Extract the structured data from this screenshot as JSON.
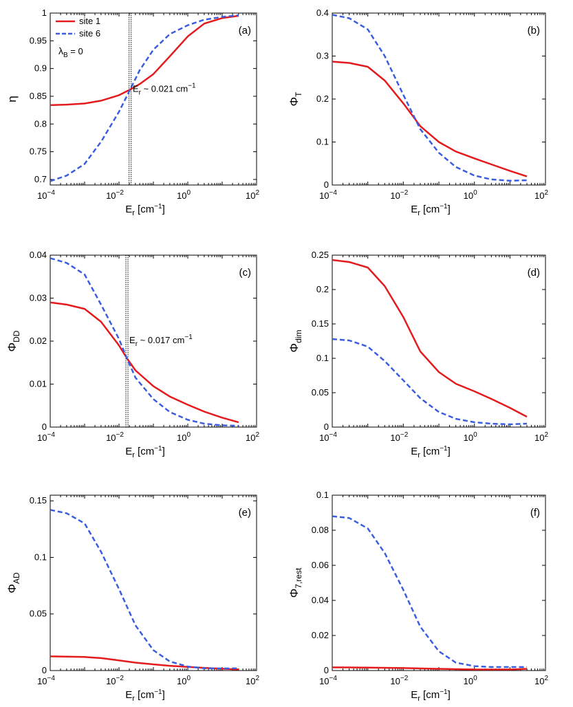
{
  "colors": {
    "site1": "#e41a1c",
    "site6": "#3a5de0",
    "axis": "#000000"
  },
  "legend": {
    "placement": "top-left",
    "entries": [
      "site 1",
      "site 6"
    ],
    "extra_label": "λ",
    "extra_sub": "B",
    "extra_tail": " = 0"
  },
  "chart_data": [
    {
      "type": "line",
      "panel_label": "(a)",
      "ylabel": "η",
      "ylabel_sub": "",
      "xlabel": "E",
      "xlabel_sub": "r",
      "xlabel_unit": " [cm",
      "xlabel_exp": "−1",
      "xlabel_close": "]",
      "xscale": "log",
      "xlim": [
        0.0001,
        100
      ],
      "ylim": [
        0.69,
        1.0
      ],
      "yticks": [
        0.7,
        0.75,
        0.8,
        0.85,
        0.9,
        0.95,
        1
      ],
      "yticklabels": [
        "0.7",
        "0.75",
        "0.8",
        "0.85",
        "0.9",
        "0.95",
        "1"
      ],
      "xticks": [
        0.0001,
        0.01,
        1,
        100
      ],
      "xtick_base": "10",
      "xtick_exps": [
        "−4",
        "−2",
        "0",
        "2"
      ],
      "vline": 0.021,
      "annotation": {
        "prefix": "E",
        "sub": "r",
        "text": " ~ 0.021 cm",
        "exp": "−1",
        "x": 0.025,
        "y": 0.858
      },
      "series": [
        {
          "name": "site 1",
          "x": [
            0.0001,
            0.0003,
            0.001,
            0.003,
            0.01,
            0.021,
            0.04,
            0.1,
            0.3,
            1,
            3,
            10,
            30
          ],
          "y": [
            0.834,
            0.835,
            0.837,
            0.842,
            0.852,
            0.862,
            0.872,
            0.89,
            0.922,
            0.958,
            0.981,
            0.991,
            0.995
          ]
        },
        {
          "name": "site 6",
          "x": [
            0.0001,
            0.0003,
            0.001,
            0.003,
            0.01,
            0.021,
            0.04,
            0.1,
            0.3,
            1,
            3,
            10,
            30
          ],
          "y": [
            0.697,
            0.707,
            0.728,
            0.768,
            0.822,
            0.862,
            0.897,
            0.934,
            0.962,
            0.978,
            0.988,
            0.993,
            0.996
          ]
        }
      ]
    },
    {
      "type": "line",
      "panel_label": "(b)",
      "ylabel": "Φ",
      "ylabel_sub": "T",
      "xlabel": "E",
      "xlabel_sub": "r",
      "xlabel_unit": " [cm",
      "xlabel_exp": "−1",
      "xlabel_close": "]",
      "xscale": "log",
      "xlim": [
        0.0001,
        100
      ],
      "ylim": [
        0,
        0.4
      ],
      "yticks": [
        0,
        0.1,
        0.2,
        0.3,
        0.4
      ],
      "yticklabels": [
        "0",
        "0.1",
        "0.2",
        "0.3",
        "0.4"
      ],
      "xticks": [
        0.0001,
        0.01,
        1,
        100
      ],
      "xtick_base": "10",
      "xtick_exps": [
        "−4",
        "−2",
        "0",
        "2"
      ],
      "series": [
        {
          "name": "site 1",
          "x": [
            0.0001,
            0.0003,
            0.001,
            0.003,
            0.01,
            0.03,
            0.1,
            0.3,
            1,
            3,
            10,
            30
          ],
          "y": [
            0.287,
            0.284,
            0.275,
            0.243,
            0.19,
            0.137,
            0.1,
            0.078,
            0.062,
            0.048,
            0.033,
            0.02
          ]
        },
        {
          "name": "site 6",
          "x": [
            0.0001,
            0.0003,
            0.001,
            0.003,
            0.01,
            0.03,
            0.1,
            0.3,
            1,
            3,
            10,
            30
          ],
          "y": [
            0.396,
            0.388,
            0.362,
            0.3,
            0.21,
            0.13,
            0.075,
            0.042,
            0.022,
            0.013,
            0.01,
            0.011
          ]
        }
      ]
    },
    {
      "type": "line",
      "panel_label": "(c)",
      "ylabel": "Φ",
      "ylabel_sub": "DD",
      "xlabel": "E",
      "xlabel_sub": "r",
      "xlabel_unit": " [cm",
      "xlabel_exp": "−1",
      "xlabel_close": "]",
      "xscale": "log",
      "xlim": [
        0.0001,
        100
      ],
      "ylim": [
        0,
        0.04
      ],
      "yticks": [
        0,
        0.01,
        0.02,
        0.03,
        0.04
      ],
      "yticklabels": [
        "0",
        "0.01",
        "0.02",
        "0.03",
        "0.04"
      ],
      "xticks": [
        0.0001,
        0.01,
        1,
        100
      ],
      "xtick_base": "10",
      "xtick_exps": [
        "−4",
        "−2",
        "0",
        "2"
      ],
      "vline": 0.017,
      "annotation": {
        "prefix": "E",
        "sub": "r",
        "text": " ~ 0.017 cm",
        "exp": "−1",
        "x": 0.02,
        "y": 0.0195
      },
      "series": [
        {
          "name": "site 1",
          "x": [
            0.0001,
            0.0003,
            0.001,
            0.003,
            0.01,
            0.017,
            0.03,
            0.1,
            0.3,
            1,
            3,
            10,
            30
          ],
          "y": [
            0.029,
            0.0285,
            0.0275,
            0.0245,
            0.019,
            0.016,
            0.0132,
            0.0095,
            0.0071,
            0.0052,
            0.0036,
            0.0022,
            0.0011
          ]
        },
        {
          "name": "site 6",
          "x": [
            0.0001,
            0.0003,
            0.001,
            0.003,
            0.01,
            0.017,
            0.03,
            0.1,
            0.3,
            1,
            3,
            10,
            30
          ],
          "y": [
            0.0393,
            0.0382,
            0.0355,
            0.0285,
            0.0205,
            0.016,
            0.0115,
            0.0065,
            0.0035,
            0.0017,
            0.0008,
            0.0004,
            0.0003
          ]
        }
      ]
    },
    {
      "type": "line",
      "panel_label": "(d)",
      "ylabel": "Φ",
      "ylabel_sub": "dim",
      "xlabel": "E",
      "xlabel_sub": "r",
      "xlabel_unit": " [cm",
      "xlabel_exp": "−1",
      "xlabel_close": "]",
      "xscale": "log",
      "xlim": [
        0.0001,
        100
      ],
      "ylim": [
        0,
        0.25
      ],
      "yticks": [
        0,
        0.05,
        0.1,
        0.15,
        0.2,
        0.25
      ],
      "yticklabels": [
        "0",
        "0.05",
        "0.1",
        "0.15",
        "0.2",
        "0.25"
      ],
      "xticks": [
        0.0001,
        0.01,
        1,
        100
      ],
      "xtick_base": "10",
      "xtick_exps": [
        "−4",
        "−2",
        "0",
        "2"
      ],
      "series": [
        {
          "name": "site 1",
          "x": [
            0.0001,
            0.0003,
            0.001,
            0.003,
            0.01,
            0.03,
            0.1,
            0.3,
            1,
            3,
            10,
            30
          ],
          "y": [
            0.243,
            0.24,
            0.232,
            0.205,
            0.16,
            0.11,
            0.08,
            0.063,
            0.052,
            0.041,
            0.028,
            0.015
          ]
        },
        {
          "name": "site 6",
          "x": [
            0.0001,
            0.0003,
            0.001,
            0.003,
            0.01,
            0.03,
            0.1,
            0.3,
            1,
            3,
            10,
            30
          ],
          "y": [
            0.128,
            0.126,
            0.117,
            0.096,
            0.068,
            0.042,
            0.022,
            0.012,
            0.007,
            0.005,
            0.004,
            0.005
          ]
        }
      ]
    },
    {
      "type": "line",
      "panel_label": "(e)",
      "ylabel": "Φ",
      "ylabel_sub": "AD",
      "xlabel": "E",
      "xlabel_sub": "r",
      "xlabel_unit": " [cm",
      "xlabel_exp": "−1",
      "xlabel_close": "]",
      "xscale": "log",
      "xlim": [
        0.0001,
        100
      ],
      "ylim": [
        0,
        0.155
      ],
      "yticks": [
        0,
        0.05,
        0.1,
        0.15
      ],
      "yticklabels": [
        "0",
        "0.05",
        "0.1",
        "0.15"
      ],
      "xticks": [
        0.0001,
        0.01,
        1,
        100
      ],
      "xtick_base": "10",
      "xtick_exps": [
        "−4",
        "−2",
        "0",
        "2"
      ],
      "series": [
        {
          "name": "site 1",
          "x": [
            0.0001,
            0.0003,
            0.001,
            0.003,
            0.01,
            0.03,
            0.1,
            0.3,
            1,
            3,
            10,
            30
          ],
          "y": [
            0.0125,
            0.0123,
            0.012,
            0.011,
            0.009,
            0.007,
            0.0055,
            0.0042,
            0.0032,
            0.0024,
            0.0016,
            0.001
          ]
        },
        {
          "name": "site 6",
          "x": [
            0.0001,
            0.0003,
            0.001,
            0.003,
            0.01,
            0.03,
            0.1,
            0.3,
            1,
            3,
            10,
            30
          ],
          "y": [
            0.142,
            0.139,
            0.13,
            0.105,
            0.072,
            0.04,
            0.018,
            0.008,
            0.0035,
            0.002,
            0.0018,
            0.002
          ]
        }
      ]
    },
    {
      "type": "line",
      "panel_label": "(f)",
      "ylabel": "Φ",
      "ylabel_sub": "7,rest",
      "xlabel": "E",
      "xlabel_sub": "r",
      "xlabel_unit": " [cm",
      "xlabel_exp": "−1",
      "xlabel_close": "]",
      "xscale": "log",
      "xlim": [
        0.0001,
        100
      ],
      "ylim": [
        0,
        0.1
      ],
      "yticks": [
        0,
        0.02,
        0.04,
        0.06,
        0.08,
        0.1
      ],
      "yticklabels": [
        "0",
        "0.02",
        "0.04",
        "0.06",
        "0.08",
        "0.1"
      ],
      "xticks": [
        0.0001,
        0.01,
        1,
        100
      ],
      "xtick_base": "10",
      "xtick_exps": [
        "−4",
        "−2",
        "0",
        "2"
      ],
      "series": [
        {
          "name": "site 1",
          "x": [
            0.0001,
            0.001,
            0.01,
            0.1,
            1,
            10,
            30
          ],
          "y": [
            0.0018,
            0.0017,
            0.0014,
            0.001,
            0.0006,
            0.0006,
            0.001
          ]
        },
        {
          "name": "site 6",
          "x": [
            0.0001,
            0.0003,
            0.001,
            0.003,
            0.01,
            0.03,
            0.1,
            0.3,
            1,
            3,
            10,
            30
          ],
          "y": [
            0.088,
            0.087,
            0.081,
            0.067,
            0.046,
            0.025,
            0.011,
            0.0045,
            0.0025,
            0.002,
            0.002,
            0.002
          ]
        }
      ]
    }
  ]
}
